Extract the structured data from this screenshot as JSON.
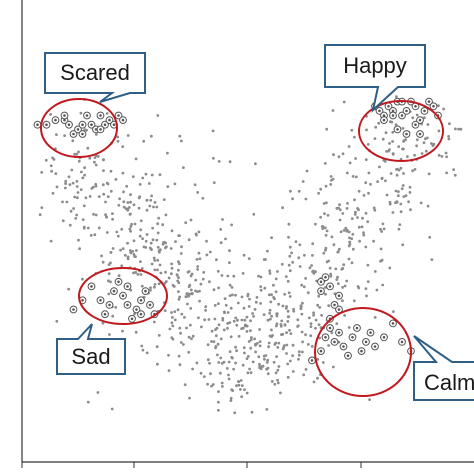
{
  "chart_data": {
    "type": "scatter",
    "title": "",
    "xlabel": "",
    "ylabel": "",
    "xlim": [
      0,
      100
    ],
    "ylim": [
      0,
      100
    ],
    "grid": false,
    "legend": "none",
    "colors": {
      "background_points": "#8c8c8c",
      "highlight_points": "#555555",
      "cluster_outline": "#c0191e",
      "callout_border": "#2f5f86",
      "axes": "#333333"
    },
    "annotations": [
      {
        "id": "scared",
        "text": "Scared"
      },
      {
        "id": "happy",
        "text": "Happy"
      },
      {
        "id": "sad",
        "text": "Sad"
      },
      {
        "id": "calm",
        "text": "Calm"
      }
    ],
    "clusters": [
      {
        "label": "Scared",
        "points": [
          [
            3,
            73
          ],
          [
            5,
            73
          ],
          [
            7,
            74
          ],
          [
            9,
            74
          ],
          [
            10,
            73
          ],
          [
            11,
            71
          ],
          [
            12,
            72
          ],
          [
            13,
            73
          ],
          [
            14,
            75
          ],
          [
            15,
            73
          ],
          [
            16,
            72
          ],
          [
            17,
            75
          ],
          [
            18,
            73
          ],
          [
            19,
            74
          ],
          [
            20,
            73
          ],
          [
            21,
            75
          ],
          [
            22,
            74
          ],
          [
            13,
            71
          ],
          [
            9,
            75
          ],
          [
            17,
            72
          ]
        ]
      },
      {
        "label": "Happy",
        "points": [
          [
            78,
            77
          ],
          [
            79,
            76
          ],
          [
            80,
            75
          ],
          [
            81,
            77
          ],
          [
            82,
            76
          ],
          [
            83,
            78
          ],
          [
            84,
            75
          ],
          [
            85,
            76
          ],
          [
            86,
            78
          ],
          [
            87,
            77
          ],
          [
            88,
            74
          ],
          [
            89,
            76
          ],
          [
            90,
            78
          ],
          [
            91,
            77
          ],
          [
            92,
            75
          ],
          [
            80,
            74
          ],
          [
            84,
            78
          ],
          [
            83,
            72
          ],
          [
            85,
            71
          ],
          [
            88,
            71
          ],
          [
            82,
            75
          ],
          [
            87,
            73
          ]
        ]
      },
      {
        "label": "Sad",
        "points": [
          [
            11,
            33
          ],
          [
            13,
            35
          ],
          [
            15,
            38
          ],
          [
            17,
            35
          ],
          [
            19,
            34
          ],
          [
            20,
            37
          ],
          [
            21,
            39
          ],
          [
            22,
            36
          ],
          [
            23,
            34
          ],
          [
            24,
            31
          ],
          [
            25,
            33
          ],
          [
            26,
            35
          ],
          [
            27,
            37
          ],
          [
            28,
            34
          ],
          [
            29,
            32
          ],
          [
            26,
            32
          ],
          [
            23,
            38
          ],
          [
            18,
            32
          ]
        ]
      },
      {
        "label": "Calm",
        "points": [
          [
            64,
            22
          ],
          [
            66,
            24
          ],
          [
            67,
            27
          ],
          [
            68,
            29
          ],
          [
            69,
            26
          ],
          [
            70,
            28
          ],
          [
            71,
            25
          ],
          [
            72,
            23
          ],
          [
            73,
            27
          ],
          [
            74,
            29
          ],
          [
            75,
            24
          ],
          [
            76,
            26
          ],
          [
            77,
            28
          ],
          [
            78,
            25
          ],
          [
            80,
            27
          ],
          [
            82,
            30
          ],
          [
            84,
            26
          ],
          [
            86,
            24
          ],
          [
            68,
            31
          ],
          [
            70,
            33
          ],
          [
            66,
            37
          ],
          [
            68,
            38
          ],
          [
            70,
            36
          ],
          [
            66,
            39
          ],
          [
            67,
            40
          ],
          [
            69,
            34
          ]
        ]
      }
    ]
  }
}
